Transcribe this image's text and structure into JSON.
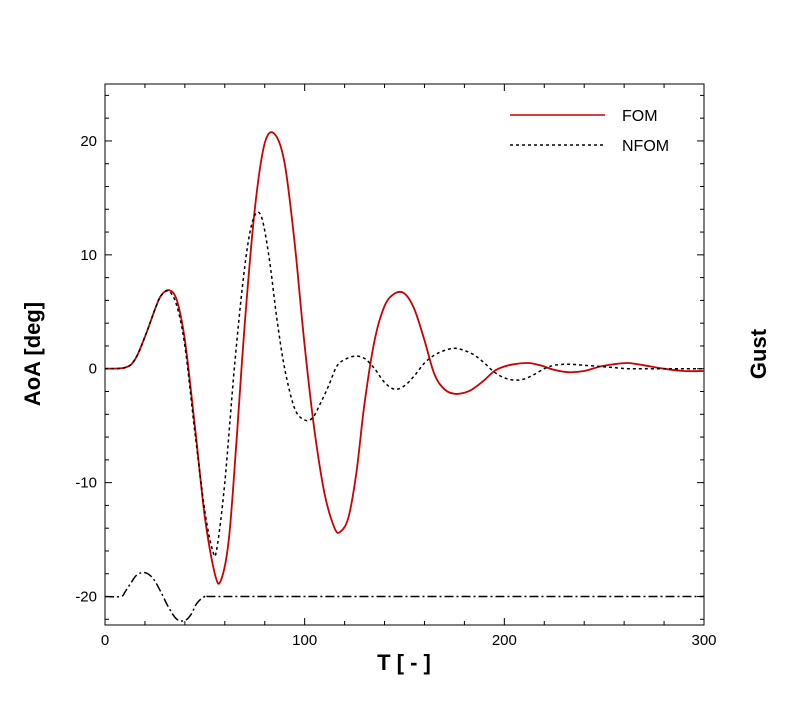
{
  "chart_data": {
    "type": "line",
    "xlabel": "T [ - ]",
    "ylabel": "AoA [deg]",
    "y2label": "Gust",
    "xlim": [
      0,
      300
    ],
    "ylim": [
      -22.5,
      25
    ],
    "xticks": [
      "0",
      "100",
      "200",
      "300"
    ],
    "yticks": [
      "-20",
      "-10",
      "0",
      "10",
      "20"
    ],
    "grid": false,
    "legend_position": "top-right",
    "series": [
      {
        "name": "FOM",
        "color": "#cc0000",
        "style": "solid",
        "x": [
          0,
          10,
          15,
          20,
          25,
          28,
          32,
          36,
          40,
          45,
          50,
          55,
          58,
          62,
          66,
          70,
          75,
          80,
          85,
          90,
          95,
          100,
          105,
          110,
          115,
          118,
          122,
          126,
          130,
          135,
          140,
          145,
          150,
          155,
          160,
          165,
          170,
          175,
          180,
          184,
          190,
          195,
          200,
          205,
          212,
          218,
          225,
          232,
          240,
          248,
          255,
          262,
          270,
          280,
          290,
          300
        ],
        "values": [
          0,
          0.1,
          0.8,
          2.8,
          5.2,
          6.4,
          6.9,
          6.0,
          2.5,
          -5.0,
          -13.0,
          -18.0,
          -18.6,
          -15.0,
          -6.0,
          4.0,
          14.0,
          19.8,
          20.6,
          18.0,
          11.0,
          2.0,
          -5.5,
          -11.0,
          -14.0,
          -14.3,
          -13.0,
          -9.0,
          -3.0,
          2.5,
          5.5,
          6.6,
          6.6,
          5.2,
          2.5,
          -0.5,
          -1.8,
          -2.2,
          -2.1,
          -1.8,
          -1.0,
          -0.2,
          0.2,
          0.4,
          0.5,
          0.3,
          -0.1,
          -0.3,
          -0.2,
          0.2,
          0.4,
          0.5,
          0.3,
          0.0,
          -0.2,
          -0.2
        ]
      },
      {
        "name": "NFOM",
        "color": "#000000",
        "style": "dotted",
        "x": [
          0,
          10,
          15,
          20,
          25,
          28,
          32,
          36,
          40,
          45,
          50,
          54,
          56,
          60,
          65,
          70,
          74,
          78,
          82,
          86,
          90,
          95,
          100,
          104,
          108,
          112,
          116,
          120,
          125,
          130,
          135,
          140,
          145,
          150,
          155,
          160,
          165,
          170,
          175,
          180,
          185,
          190,
          195,
          200,
          205,
          210,
          215,
          220,
          225,
          232,
          240,
          248,
          255,
          262,
          270,
          280,
          290,
          300
        ],
        "values": [
          0,
          0.1,
          0.8,
          2.8,
          5.2,
          6.4,
          6.8,
          5.5,
          2.0,
          -5.5,
          -12.5,
          -16.0,
          -15.8,
          -10.0,
          0.5,
          9.0,
          13.0,
          13.5,
          10.0,
          4.5,
          0.0,
          -3.5,
          -4.5,
          -4.3,
          -3.0,
          -1.5,
          0.2,
          0.8,
          1.1,
          0.9,
          0.0,
          -1.2,
          -1.8,
          -1.5,
          -0.6,
          0.5,
          1.2,
          1.6,
          1.8,
          1.6,
          1.2,
          0.5,
          -0.3,
          -0.8,
          -1.0,
          -0.9,
          -0.5,
          0.0,
          0.3,
          0.4,
          0.3,
          0.2,
          0.1,
          0.0,
          0.0,
          0.0,
          0.0,
          0.0
        ]
      },
      {
        "name": "",
        "color": "#000000",
        "style": "dashdot",
        "x": [
          0,
          8,
          10,
          13,
          16,
          20,
          24,
          28,
          32,
          36,
          40,
          43,
          46,
          50,
          55,
          100,
          150,
          200,
          250,
          300
        ],
        "values": [
          -20,
          -20,
          -19.6,
          -18.8,
          -18.1,
          -17.9,
          -18.4,
          -19.6,
          -21.0,
          -22.0,
          -22.1,
          -21.6,
          -20.6,
          -20.0,
          -20,
          -20,
          -20,
          -20,
          -20,
          -20
        ]
      }
    ]
  }
}
